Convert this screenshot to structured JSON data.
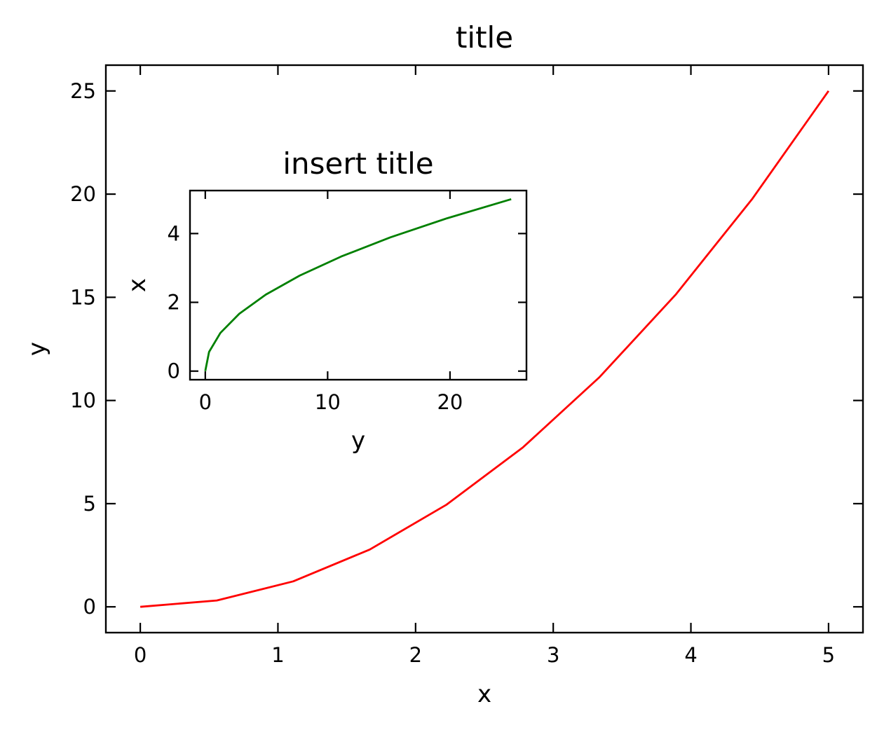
{
  "chart_data": [
    {
      "type": "line",
      "title": "title",
      "xlabel": "x",
      "ylabel": "y",
      "xlim": [
        -0.25,
        5.25
      ],
      "ylim": [
        -1.25,
        26.25
      ],
      "xticks": [
        0,
        1,
        2,
        3,
        4,
        5
      ],
      "yticks": [
        0,
        5,
        10,
        15,
        20,
        25
      ],
      "xtick_labels": [
        "0",
        "1",
        "2",
        "3",
        "4",
        "5"
      ],
      "ytick_labels": [
        "0",
        "5",
        "10",
        "15",
        "20",
        "25"
      ],
      "tick_direction": "in",
      "ticks_on_all_sides": true,
      "grid": false,
      "series": [
        {
          "color": "#ff0000",
          "x": [
            0,
            0.556,
            1.111,
            1.667,
            2.222,
            2.778,
            3.333,
            3.889,
            4.444,
            5.0
          ],
          "y": [
            0,
            0.309,
            1.235,
            2.778,
            4.938,
            7.716,
            11.111,
            15.123,
            19.753,
            25.0
          ]
        }
      ]
    },
    {
      "type": "line",
      "title": "insert title",
      "xlabel": "y",
      "ylabel": "x",
      "position": "inset upper-left",
      "xlim": [
        -1.25,
        26.25
      ],
      "ylim": [
        -0.25,
        5.25
      ],
      "xticks": [
        0,
        10,
        20
      ],
      "yticks": [
        0,
        2,
        4
      ],
      "xtick_labels": [
        "0",
        "10",
        "20"
      ],
      "ytick_labels": [
        "0",
        "2",
        "4"
      ],
      "tick_direction": "in",
      "ticks_on_all_sides": true,
      "grid": false,
      "series": [
        {
          "color": "#008000",
          "x": [
            0,
            0.309,
            1.235,
            2.778,
            4.938,
            7.716,
            11.111,
            15.123,
            19.753,
            25.0
          ],
          "y": [
            0,
            0.556,
            1.111,
            1.667,
            2.222,
            2.778,
            3.333,
            3.889,
            4.444,
            5.0
          ]
        }
      ]
    }
  ]
}
